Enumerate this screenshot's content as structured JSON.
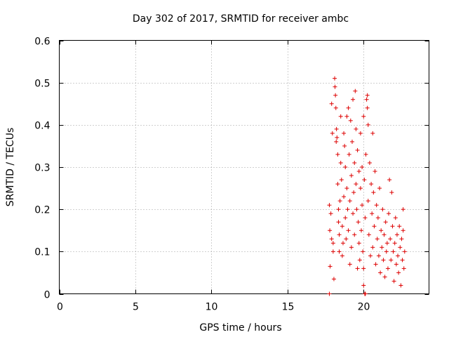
{
  "chart_data": {
    "type": "scatter",
    "title": "Day 302 of 2017, SRMTID for receiver ambc",
    "xlabel": "GPS time / hours",
    "ylabel": "SRMTID / TECUs",
    "xlim": [
      0,
      24.3
    ],
    "ylim": [
      0,
      0.6
    ],
    "xticks": [
      0,
      5,
      10,
      15,
      20
    ],
    "xtick_labels": [
      "0",
      "5",
      "10",
      "15",
      "20"
    ],
    "yticks": [
      0,
      0.1,
      0.2,
      0.3,
      0.4,
      0.5,
      0.6
    ],
    "ytick_labels": [
      "0",
      "0.1",
      "0.2",
      "0.3",
      "0.4",
      "0.5",
      "0.6"
    ],
    "grid": true,
    "marker": "plus",
    "color": "#dd0000",
    "series": [
      {
        "name": "SRMTID",
        "points": [
          [
            17.75,
            0.0
          ],
          [
            20.08,
            0.0
          ],
          [
            20.12,
            0.0
          ],
          [
            17.75,
            0.21
          ],
          [
            17.78,
            0.15
          ],
          [
            17.8,
            0.065
          ],
          [
            17.85,
            0.19
          ],
          [
            17.9,
            0.45
          ],
          [
            17.9,
            0.13
          ],
          [
            17.95,
            0.38
          ],
          [
            18.0,
            0.1
          ],
          [
            18.0,
            0.12
          ],
          [
            18.05,
            0.035
          ],
          [
            18.1,
            0.51
          ],
          [
            18.12,
            0.49
          ],
          [
            18.15,
            0.47
          ],
          [
            18.18,
            0.44
          ],
          [
            18.2,
            0.36
          ],
          [
            18.22,
            0.39
          ],
          [
            18.25,
            0.37
          ],
          [
            18.3,
            0.33
          ],
          [
            18.3,
            0.26
          ],
          [
            18.35,
            0.2
          ],
          [
            18.35,
            0.17
          ],
          [
            18.4,
            0.14
          ],
          [
            18.4,
            0.1
          ],
          [
            18.45,
            0.22
          ],
          [
            18.5,
            0.31
          ],
          [
            18.5,
            0.42
          ],
          [
            18.55,
            0.27
          ],
          [
            18.6,
            0.16
          ],
          [
            18.6,
            0.09
          ],
          [
            18.65,
            0.12
          ],
          [
            18.7,
            0.23
          ],
          [
            18.7,
            0.38
          ],
          [
            18.75,
            0.35
          ],
          [
            18.8,
            0.3
          ],
          [
            18.8,
            0.18
          ],
          [
            18.85,
            0.13
          ],
          [
            18.9,
            0.42
          ],
          [
            18.9,
            0.25
          ],
          [
            18.95,
            0.2
          ],
          [
            19.0,
            0.44
          ],
          [
            19.0,
            0.15
          ],
          [
            19.05,
            0.33
          ],
          [
            19.1,
            0.07
          ],
          [
            19.1,
            0.22
          ],
          [
            19.15,
            0.41
          ],
          [
            19.2,
            0.28
          ],
          [
            19.2,
            0.11
          ],
          [
            19.25,
            0.36
          ],
          [
            19.3,
            0.19
          ],
          [
            19.3,
            0.46
          ],
          [
            19.35,
            0.24
          ],
          [
            19.4,
            0.31
          ],
          [
            19.4,
            0.14
          ],
          [
            19.45,
            0.48
          ],
          [
            19.5,
            0.39
          ],
          [
            19.5,
            0.26
          ],
          [
            19.55,
            0.2
          ],
          [
            19.6,
            0.34
          ],
          [
            19.6,
            0.06
          ],
          [
            19.65,
            0.17
          ],
          [
            19.7,
            0.29
          ],
          [
            19.7,
            0.12
          ],
          [
            19.75,
            0.08
          ],
          [
            19.8,
            0.25
          ],
          [
            19.8,
            0.38
          ],
          [
            19.85,
            0.15
          ],
          [
            19.9,
            0.3
          ],
          [
            19.9,
            0.21
          ],
          [
            19.95,
            0.1
          ],
          [
            20.0,
            0.42
          ],
          [
            20.0,
            0.06
          ],
          [
            20.0,
            0.02
          ],
          [
            20.05,
            0.27
          ],
          [
            20.1,
            0.18
          ],
          [
            20.15,
            0.33
          ],
          [
            20.2,
            0.46
          ],
          [
            20.25,
            0.47
          ],
          [
            20.25,
            0.44
          ],
          [
            20.3,
            0.4
          ],
          [
            20.3,
            0.22
          ],
          [
            20.35,
            0.14
          ],
          [
            20.4,
            0.31
          ],
          [
            20.45,
            0.09
          ],
          [
            20.5,
            0.26
          ],
          [
            20.55,
            0.19
          ],
          [
            20.6,
            0.38
          ],
          [
            20.6,
            0.11
          ],
          [
            20.65,
            0.24
          ],
          [
            20.7,
            0.16
          ],
          [
            20.75,
            0.29
          ],
          [
            20.8,
            0.07
          ],
          [
            20.85,
            0.21
          ],
          [
            20.9,
            0.13
          ],
          [
            20.95,
            0.18
          ],
          [
            21.0,
            0.09
          ],
          [
            21.05,
            0.25
          ],
          [
            21.1,
            0.05
          ],
          [
            21.15,
            0.15
          ],
          [
            21.2,
            0.11
          ],
          [
            21.25,
            0.2
          ],
          [
            21.3,
            0.08
          ],
          [
            21.35,
            0.14
          ],
          [
            21.4,
            0.04
          ],
          [
            21.45,
            0.17
          ],
          [
            21.5,
            0.1
          ],
          [
            21.55,
            0.12
          ],
          [
            21.6,
            0.06
          ],
          [
            21.65,
            0.19
          ],
          [
            21.7,
            0.27
          ],
          [
            21.75,
            0.13
          ],
          [
            21.8,
            0.08
          ],
          [
            21.85,
            0.24
          ],
          [
            21.9,
            0.16
          ],
          [
            21.95,
            0.1
          ],
          [
            22.0,
            0.03
          ],
          [
            22.05,
            0.12
          ],
          [
            22.1,
            0.18
          ],
          [
            22.15,
            0.07
          ],
          [
            22.2,
            0.14
          ],
          [
            22.25,
            0.09
          ],
          [
            22.3,
            0.05
          ],
          [
            22.35,
            0.16
          ],
          [
            22.4,
            0.11
          ],
          [
            22.45,
            0.02
          ],
          [
            22.5,
            0.13
          ],
          [
            22.55,
            0.08
          ],
          [
            22.6,
            0.2
          ],
          [
            22.6,
            0.15
          ],
          [
            22.65,
            0.06
          ],
          [
            22.7,
            0.1
          ]
        ]
      }
    ]
  }
}
